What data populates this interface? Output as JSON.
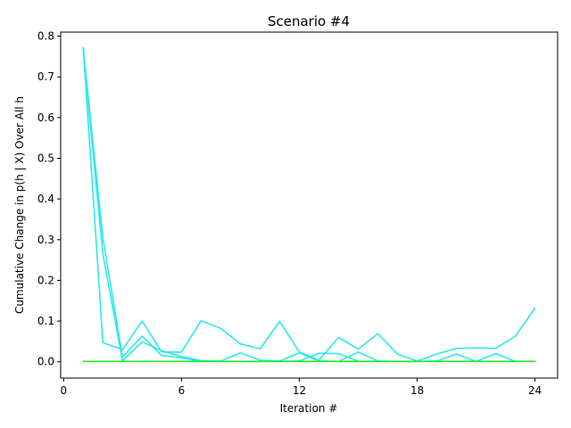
{
  "chart_data": {
    "type": "line",
    "title": "Scenario #4",
    "xlabel": "Iteration #",
    "ylabel": "Cumulative Change in p(h | X) Over All h",
    "xlim": [
      -0.15,
      25.15
    ],
    "ylim": [
      -0.04,
      0.81
    ],
    "xticks": [
      0,
      6,
      12,
      18,
      24
    ],
    "yticks": [
      0.0,
      0.1,
      0.2,
      0.3,
      0.4,
      0.5,
      0.6,
      0.7,
      0.8
    ],
    "ytick_labels": [
      "0.0",
      "0.1",
      "0.2",
      "0.3",
      "0.4",
      "0.5",
      "0.6",
      "0.7",
      "0.8"
    ],
    "grid": false,
    "series": [
      {
        "color": "#2ee8ee",
        "x": [
          1,
          2,
          3,
          4,
          5,
          6,
          7,
          8,
          9,
          10,
          11,
          12,
          13,
          14,
          15,
          16,
          17,
          18,
          19,
          20,
          21,
          22,
          23,
          24
        ],
        "y": [
          0.772,
          0.047,
          0.03,
          0.1,
          0.024,
          0.024,
          0.101,
          0.082,
          0.044,
          0.032,
          0.099,
          0.024,
          0.004,
          0.06,
          0.031,
          0.069,
          0.019,
          0.002,
          0.019,
          0.033,
          0.034,
          0.033,
          0.063,
          0.132
        ]
      },
      {
        "color": "#2ee8ee",
        "x": [
          1,
          2,
          3,
          4,
          5,
          6,
          7,
          8,
          9,
          10,
          11,
          12,
          13,
          14,
          15,
          16,
          17,
          18,
          19,
          20,
          21,
          22,
          23
        ],
        "y": [
          0.765,
          0.264,
          0.003,
          0.049,
          0.027,
          0.013,
          0.003,
          0.002,
          0.022,
          0.004,
          0.002,
          0.022,
          0.002,
          0.001,
          0.024,
          0.002,
          0.001,
          0.001,
          0.002,
          0.019,
          0.001,
          0.02,
          0.001
        ]
      },
      {
        "color": "#2ee8ee",
        "x": [
          1,
          2,
          3,
          4,
          5,
          6,
          7,
          8,
          9,
          10,
          11,
          12,
          13,
          14,
          15,
          16,
          17,
          18,
          19,
          20,
          21,
          22,
          23
        ],
        "y": [
          0.77,
          0.303,
          0.012,
          0.063,
          0.015,
          0.01,
          0.001,
          0.001,
          0.001,
          0.001,
          0.001,
          0.002,
          0.021,
          0.02,
          0.001,
          0.001,
          0.001,
          0.001,
          0.001,
          0.001,
          0.001,
          0.001,
          0.001
        ]
      },
      {
        "color": "#22ee22",
        "x": [
          1,
          2,
          3,
          4,
          5,
          6,
          7,
          8,
          9,
          10,
          11,
          12,
          13,
          14,
          15,
          16,
          17,
          18,
          19,
          20,
          21,
          22,
          23,
          24
        ],
        "y": [
          0.001,
          0.001,
          0.001,
          0.001,
          0.001,
          0.001,
          0.001,
          0.001,
          0.001,
          0.001,
          0.001,
          0.001,
          0.001,
          0.001,
          0.001,
          0.001,
          0.001,
          0.001,
          0.001,
          0.001,
          0.001,
          0.001,
          0.001,
          0.001
        ]
      }
    ]
  }
}
